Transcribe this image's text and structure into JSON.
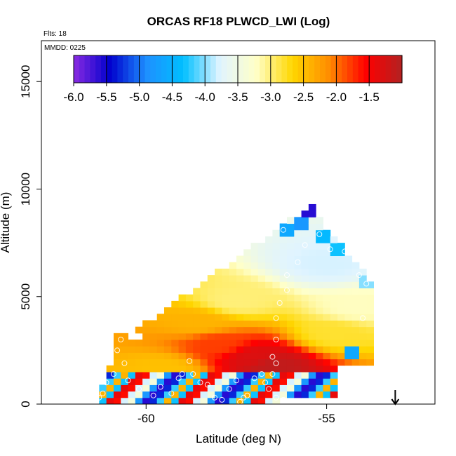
{
  "chart_data": {
    "type": "heatmap",
    "title": "ORCAS RF18 PLWCD_LWI (Log)",
    "flights_note": "Flts: 18",
    "date_note": "MMDD: 0225",
    "xlabel": "Latitude (deg N)",
    "ylabel": "Altitude (m)",
    "xlim": [
      -62.9,
      -52.0
    ],
    "ylim": [
      0,
      16900
    ],
    "xticks": [
      -60,
      -55
    ],
    "xtick_labels": [
      "-60",
      "-55"
    ],
    "yticks": [
      0,
      5000,
      10000,
      15000
    ],
    "ytick_labels": [
      "0",
      "5000",
      "10000",
      "15000"
    ],
    "colorbar": {
      "min": -6.0,
      "max": -1.0,
      "ticks": [
        -6.0,
        -5.5,
        -5.0,
        -4.5,
        -4.0,
        -3.5,
        -3.0,
        -2.5,
        -2.0,
        -1.5
      ],
      "tick_labels": [
        "-6.0",
        "-5.5",
        "-5.0",
        "-4.5",
        "-4.0",
        "-3.5",
        "-3.0",
        "-2.5",
        "-2.0",
        "-1.5"
      ],
      "colors": [
        "#8a2be2",
        "#0000cd",
        "#1e90ff",
        "#00bfff",
        "#e0f4ff",
        "#ffffc8",
        "#ffd700",
        "#ff8c00",
        "#ff0000",
        "#b22222"
      ]
    },
    "grid": {
      "dx": 0.2,
      "dy": 300
    },
    "region": {
      "stacks": [
        {
          "x0": -61.2,
          "x1": -60.8,
          "bottom": 0,
          "top": 1000
        },
        {
          "x0": -61.0,
          "x1": -60.8,
          "bottom": 0,
          "top": 1700
        },
        {
          "x0": -60.8,
          "x1": -60.0,
          "bottom": 0,
          "top": 3000
        },
        {
          "x0": -60.0,
          "x1": -56.3,
          "bottom": 0,
          "top": 3300
        },
        {
          "x0": -56.3,
          "x1": -54.6,
          "bottom": 300,
          "top": 3300
        },
        {
          "x0": -54.6,
          "x1": -53.7,
          "bottom": 1700,
          "top": 3300
        }
      ],
      "upper_polygon": [
        [
          -60.8,
          2800
        ],
        [
          -55.4,
          9300
        ],
        [
          -55.0,
          8200
        ],
        [
          -53.6,
          5400
        ],
        [
          -53.6,
          3300
        ],
        [
          -60.8,
          3300
        ]
      ]
    },
    "gradient_points": [
      {
        "lat": -55.0,
        "alt": 6500,
        "value": -3.8
      },
      {
        "lat": -57.5,
        "alt": 4800,
        "value": -3.0
      },
      {
        "lat": -58.5,
        "alt": 3800,
        "value": -2.4
      },
      {
        "lat": -58.0,
        "alt": 2800,
        "value": -1.8
      },
      {
        "lat": -57.0,
        "alt": 2200,
        "value": -1.3
      },
      {
        "lat": -56.5,
        "alt": 1800,
        "value": -1.1
      },
      {
        "lat": -59.5,
        "alt": 1600,
        "value": -2.5
      },
      {
        "lat": -54.8,
        "alt": 3300,
        "value": -2.8
      },
      {
        "lat": -54.2,
        "alt": 4500,
        "value": -3.2
      }
    ],
    "low_band_values": [
      -1.6,
      -2.4,
      -5.6,
      -3.8,
      -4.3,
      -5.3,
      -3.4,
      -1.4,
      -4.2,
      -4.8
    ],
    "highlight_cells": [
      {
        "lat": -55.4,
        "alt": 9000,
        "value": -5.6
      },
      {
        "lat": -55.6,
        "alt": 8400,
        "value": -4.8
      },
      {
        "lat": -55.0,
        "alt": 7800,
        "value": -4.4
      },
      {
        "lat": -54.6,
        "alt": 7200,
        "value": -4.3
      },
      {
        "lat": -53.8,
        "alt": 5800,
        "value": -4.0
      },
      {
        "lat": -56.0,
        "alt": 8100,
        "value": -4.6
      },
      {
        "lat": -54.3,
        "alt": 2300,
        "value": -4.6
      }
    ],
    "flight_track": [
      [
        -60.7,
        3000
      ],
      [
        -60.8,
        2500
      ],
      [
        -60.6,
        1900
      ],
      [
        -60.9,
        1400
      ],
      [
        -61.1,
        1000
      ],
      [
        -61.2,
        500
      ],
      [
        -61.3,
        300
      ],
      [
        -60.5,
        1100
      ],
      [
        -60.2,
        700
      ],
      [
        -59.8,
        400
      ],
      [
        -59.3,
        500
      ],
      [
        -59.0,
        1400
      ],
      [
        -58.7,
        1400
      ],
      [
        -58.3,
        900
      ],
      [
        -58.1,
        300
      ],
      [
        -57.9,
        200
      ],
      [
        -57.7,
        700
      ],
      [
        -57.4,
        100
      ],
      [
        -57.2,
        400
      ],
      [
        -57.0,
        1200
      ],
      [
        -56.7,
        1000
      ],
      [
        -56.6,
        700
      ],
      [
        -56.4,
        300
      ],
      [
        -56.2,
        200
      ],
      [
        -56.5,
        1400
      ],
      [
        -56.4,
        1900
      ],
      [
        -56.5,
        2200
      ],
      [
        -56.4,
        3000
      ],
      [
        -56.4,
        4000
      ],
      [
        -56.3,
        4700
      ],
      [
        -56.1,
        5300
      ],
      [
        -56.1,
        6000
      ],
      [
        -55.8,
        6600
      ],
      [
        -55.6,
        7400
      ],
      [
        -55.2,
        7900
      ],
      [
        -55.2,
        9100
      ],
      [
        -56.2,
        8100
      ],
      [
        -54.9,
        7200
      ],
      [
        -54.5,
        7100
      ],
      [
        -54.1,
        6000
      ],
      [
        -53.9,
        5600
      ],
      [
        -53.5,
        5000
      ],
      [
        -54.0,
        4000
      ],
      [
        -57.3,
        300
      ],
      [
        -56.8,
        1400
      ],
      [
        -57.5,
        1100
      ],
      [
        -58.8,
        2000
      ],
      [
        -59.1,
        1200
      ],
      [
        -59.6,
        800
      ],
      [
        -58.5,
        1000
      ]
    ],
    "arrow_lat": -53.1
  }
}
